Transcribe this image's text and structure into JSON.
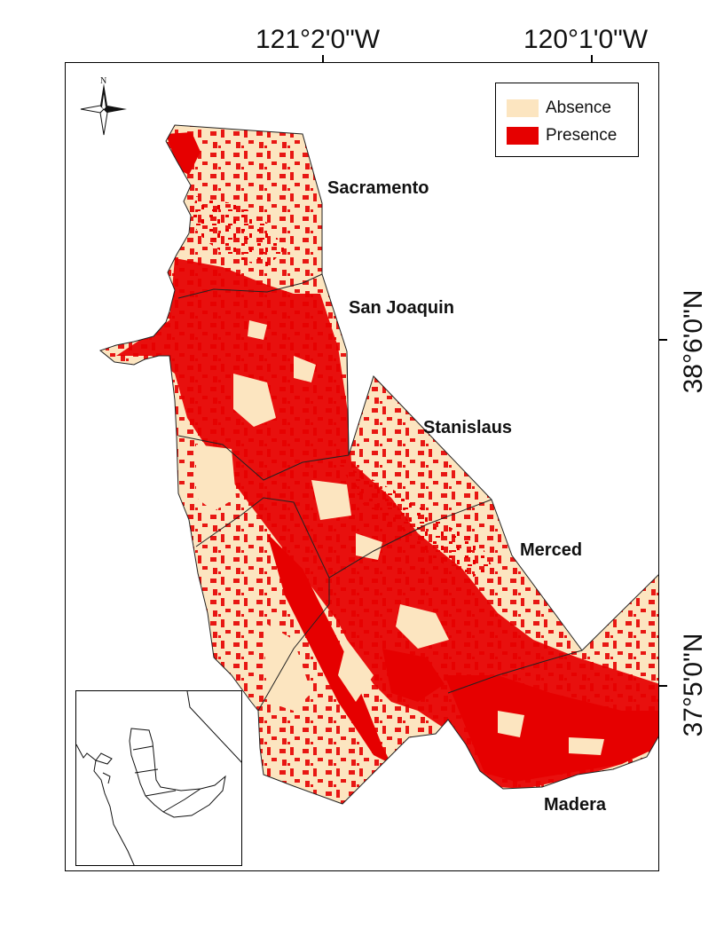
{
  "map": {
    "longitude_labels": [
      "121°2'0\"W",
      "120°1'0\"W"
    ],
    "latitude_labels": [
      "38°6'0\"N",
      "37°5'0\"N"
    ],
    "legend": [
      {
        "label": "Absence",
        "color": "#fce5c0"
      },
      {
        "label": "Presence",
        "color": "#e60000"
      }
    ],
    "counties": [
      "Sacramento",
      "San Joaquin",
      "Stanislaus",
      "Merced",
      "Madera"
    ],
    "north_arrow_label": "N",
    "colors": {
      "absence": "#fce5c0",
      "presence": "#e60000",
      "boundary": "#222222"
    }
  }
}
